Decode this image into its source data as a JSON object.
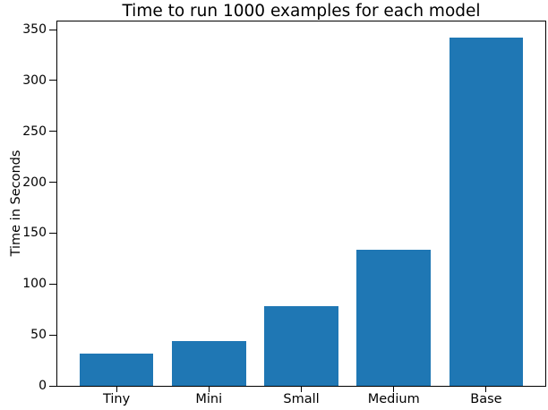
{
  "chart_data": {
    "type": "bar",
    "title": "Time to run 1000 examples for each model",
    "xlabel": "",
    "ylabel": "Time in Seconds",
    "categories": [
      "Tiny",
      "Mini",
      "Small",
      "Medium",
      "Base"
    ],
    "values": [
      32,
      44,
      78,
      134,
      342
    ],
    "ylim": [
      0,
      358
    ],
    "yticks": [
      0,
      50,
      100,
      150,
      200,
      250,
      300,
      350
    ],
    "grid": false,
    "legend": "none",
    "bar_color": "#1f77b4"
  },
  "colors": {
    "background": "#ffffff",
    "bar": "#1f77b4",
    "axis": "#000000",
    "text": "#000000"
  }
}
